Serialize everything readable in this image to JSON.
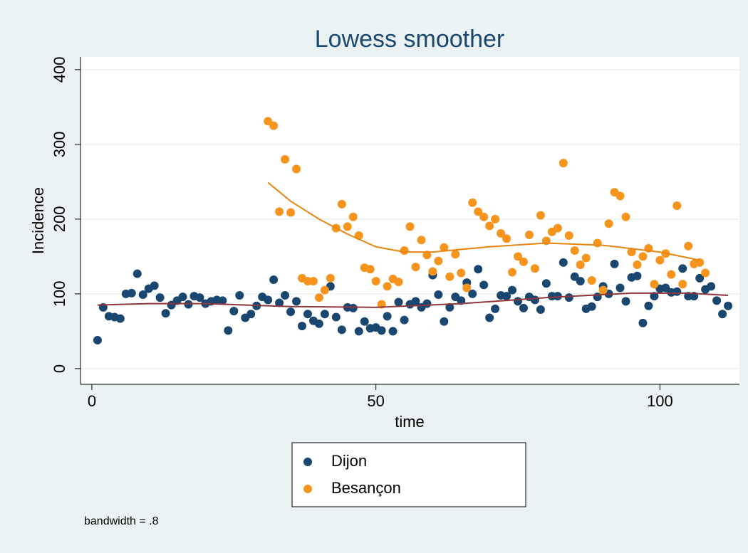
{
  "chart_data": {
    "type": "scatter",
    "title": "Lowess smoother",
    "x_label": "time",
    "y_label": "Incidence",
    "note": "bandwidth = .8",
    "xlim": [
      -2,
      114
    ],
    "xticks": [
      0,
      50,
      100
    ],
    "ylim": [
      -21,
      417
    ],
    "yticks": [
      0,
      100,
      200,
      300,
      400
    ],
    "grid": true,
    "legend": "bottom",
    "series": [
      {
        "name": "Dijon",
        "color": "#1a476f",
        "fit_color": "#90353b",
        "x": [
          1,
          2,
          3,
          4,
          5,
          6,
          7,
          8,
          9,
          10,
          11,
          12,
          13,
          14,
          15,
          16,
          17,
          18,
          19,
          20,
          21,
          22,
          23,
          24,
          25,
          26,
          27,
          28,
          29,
          30,
          31,
          32,
          33,
          34,
          35,
          36,
          37,
          38,
          39,
          40,
          41,
          42,
          43,
          44,
          45,
          46,
          47,
          48,
          49,
          50,
          51,
          52,
          53,
          54,
          55,
          56,
          57,
          58,
          59,
          60,
          61,
          62,
          63,
          64,
          65,
          66,
          67,
          68,
          69,
          70,
          71,
          72,
          73,
          74,
          75,
          76,
          77,
          78,
          79,
          80,
          81,
          82,
          83,
          84,
          85,
          86,
          87,
          88,
          89,
          90,
          91,
          92,
          93,
          94,
          95,
          96,
          97,
          98,
          99,
          100,
          101,
          102,
          103,
          104,
          105,
          106,
          107,
          108,
          109,
          110,
          111,
          112
        ],
        "values": [
          38,
          82,
          70,
          69,
          67,
          100,
          101,
          127,
          99,
          107,
          111,
          95,
          74,
          85,
          91,
          96,
          86,
          97,
          95,
          87,
          90,
          92,
          91,
          51,
          77,
          98,
          68,
          73,
          84,
          96,
          92,
          119,
          88,
          98,
          76,
          90,
          57,
          73,
          64,
          60,
          73,
          110,
          69,
          52,
          82,
          81,
          50,
          63,
          54,
          55,
          51,
          70,
          50,
          89,
          65,
          86,
          90,
          82,
          87,
          125,
          99,
          63,
          82,
          96,
          91,
          115,
          100,
          133,
          112,
          68,
          80,
          98,
          97,
          105,
          90,
          81,
          96,
          92,
          79,
          114,
          97,
          97,
          142,
          95,
          123,
          117,
          80,
          83,
          96,
          110,
          100,
          140,
          108,
          90,
          122,
          124,
          61,
          84,
          97,
          107,
          108,
          102,
          103,
          134,
          97,
          97,
          121,
          106,
          110,
          91,
          73,
          84
        ],
        "fit_x": [
          1,
          10,
          20,
          35,
          50,
          65,
          80,
          95,
          105,
          112
        ],
        "fit_values": [
          85,
          87,
          87,
          83,
          82,
          87,
          95,
          101,
          101,
          98
        ]
      },
      {
        "name": "Besançon",
        "color": "#f7941d",
        "fit_color": "#e8850f",
        "x": [
          31,
          32,
          33,
          34,
          35,
          36,
          37,
          38,
          39,
          40,
          41,
          42,
          43,
          44,
          45,
          46,
          47,
          48,
          49,
          50,
          51,
          52,
          53,
          54,
          55,
          56,
          57,
          58,
          59,
          60,
          61,
          62,
          63,
          64,
          65,
          66,
          67,
          68,
          69,
          70,
          71,
          72,
          73,
          74,
          75,
          76,
          77,
          78,
          79,
          80,
          81,
          82,
          83,
          84,
          85,
          86,
          87,
          88,
          89,
          90,
          91,
          92,
          93,
          94,
          95,
          96,
          97,
          98,
          99,
          100,
          101,
          102,
          103,
          104,
          105,
          106,
          107,
          108
        ],
        "values": [
          331,
          325,
          210,
          280,
          209,
          267,
          121,
          117,
          117,
          95,
          105,
          121,
          188,
          220,
          190,
          203,
          178,
          135,
          133,
          117,
          86,
          110,
          120,
          116,
          158,
          190,
          136,
          172,
          152,
          130,
          144,
          162,
          123,
          153,
          128,
          108,
          222,
          210,
          203,
          191,
          200,
          181,
          174,
          129,
          150,
          143,
          179,
          134,
          205,
          171,
          183,
          188,
          275,
          178,
          158,
          139,
          148,
          118,
          168,
          105,
          194,
          236,
          231,
          203,
          156,
          139,
          150,
          161,
          113,
          145,
          154,
          126,
          218,
          113,
          164,
          140,
          142,
          128
        ],
        "fit_x": [
          31,
          35,
          40,
          45,
          50,
          55,
          60,
          70,
          80,
          90,
          100,
          107
        ],
        "fit_values": [
          249,
          224,
          200,
          180,
          163,
          156,
          156,
          163,
          168,
          165,
          156,
          145
        ]
      }
    ]
  }
}
